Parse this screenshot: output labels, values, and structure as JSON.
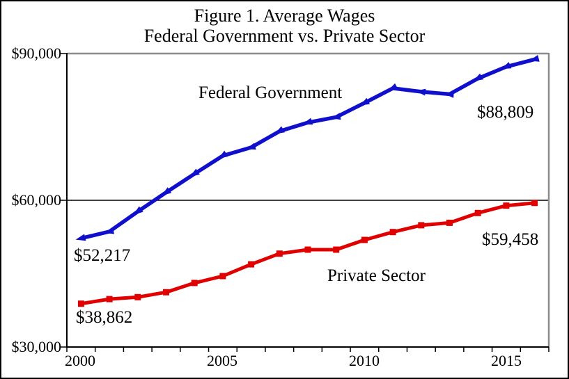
{
  "chart_data": {
    "type": "line",
    "title": "Figure 1. Average Wages",
    "subtitle": "Federal Government vs. Private Sector",
    "x": [
      2000,
      2001,
      2002,
      2003,
      2004,
      2005,
      2006,
      2007,
      2008,
      2009,
      2010,
      2011,
      2012,
      2013,
      2014,
      2015,
      2016
    ],
    "series": [
      {
        "name": "Federal Government",
        "color": "#1010CC",
        "marker": "triangle",
        "start_label": "$52,217",
        "end_label": "$88,809",
        "values": [
          52217,
          53600,
          57700,
          61600,
          65400,
          69100,
          70800,
          74100,
          75900,
          77000,
          79900,
          82900,
          82200,
          81700,
          84900,
          87300,
          88809
        ]
      },
      {
        "name": "Private Sector",
        "color": "#E00000",
        "marker": "square",
        "start_label": "$38,862",
        "end_label": "$59,458",
        "values": [
          38862,
          39800,
          40200,
          41200,
          43100,
          44500,
          46900,
          49100,
          49900,
          49900,
          51900,
          53500,
          54900,
          55400,
          57400,
          58900,
          59458
        ]
      }
    ],
    "ylim": [
      30000,
      90000
    ],
    "ytick_values": [
      30000,
      60000,
      90000
    ],
    "ytick_labels": [
      "$30,000",
      "$60,000",
      "$90,000"
    ],
    "xtick_labels": [
      "2000",
      "2005",
      "2010",
      "2015"
    ],
    "xtick_label_years": [
      2000,
      2005,
      2010,
      2015
    ],
    "gridline_value": 60000,
    "grid": "single horizontal gridline at $60,000",
    "legend_position": "inline-text-labels",
    "colors": {
      "axis": "#000000",
      "plot_border": "#8C8C8C",
      "text": "#000000",
      "background": "#FFFFFF"
    }
  }
}
